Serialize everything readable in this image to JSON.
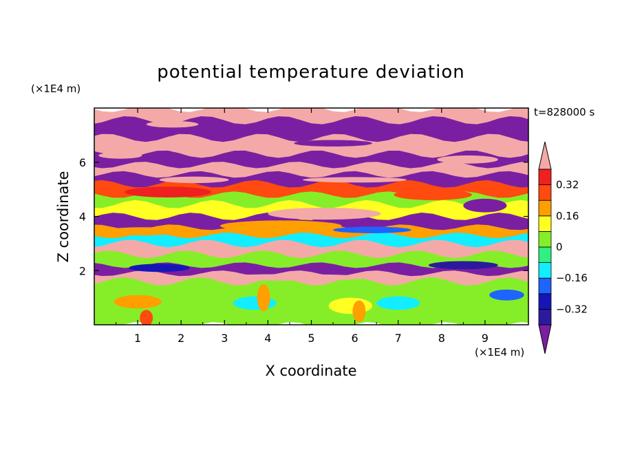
{
  "chart_data": {
    "type": "heatmap",
    "title": "potential temperature deviation",
    "xlabel": "X coordinate",
    "ylabel": "Z coordinate",
    "x_unit": "(×1E4 m)",
    "y_unit": "(×1E4 m)",
    "time_label": "t=828000 s",
    "xlim": [
      0,
      10
    ],
    "ylim": [
      0,
      8
    ],
    "x_ticks": [
      1,
      2,
      3,
      4,
      5,
      6,
      7,
      8,
      9
    ],
    "y_ticks": [
      2,
      4,
      6
    ],
    "contour_levels": [
      -0.4,
      -0.32,
      -0.24,
      -0.16,
      -0.08,
      0,
      0.08,
      0.16,
      0.24,
      0.32,
      0.4
    ],
    "colorbar_labels": [
      "0.32",
      "0.16",
      "0",
      "−0.16",
      "−0.32"
    ],
    "colorbar_label_values": [
      0.32,
      0.16,
      0,
      -0.16,
      -0.32
    ],
    "colors": {
      "below_min": "#7b1fa2",
      "levels": [
        "#2b1a9e",
        "#1616b8",
        "#1e64ff",
        "#12eeff",
        "#2ff080",
        "#86ee28",
        "#ffff22",
        "#ff9f00",
        "#ff4a10",
        "#ee2020"
      ],
      "above_max": "#f4a9a8"
    },
    "bands": [
      {
        "z_bottom": 7.55,
        "z_top": 8.0,
        "value": 0.5
      },
      {
        "z_bottom": 6.9,
        "z_top": 7.55,
        "value": -0.5
      },
      {
        "z_bottom": 6.3,
        "z_top": 6.9,
        "value": 0.5
      },
      {
        "z_bottom": 5.9,
        "z_top": 6.3,
        "value": -0.5
      },
      {
        "z_bottom": 5.55,
        "z_top": 5.9,
        "value": 0.45
      },
      {
        "z_bottom": 5.2,
        "z_top": 5.55,
        "value": -0.42
      },
      {
        "z_bottom": 4.8,
        "z_top": 5.2,
        "value": 0.3
      },
      {
        "z_bottom": 4.45,
        "z_top": 4.8,
        "value": 0.05
      },
      {
        "z_bottom": 4.0,
        "z_top": 4.45,
        "value": 0.12
      },
      {
        "z_bottom": 3.6,
        "z_top": 4.0,
        "value": -0.45
      },
      {
        "z_bottom": 3.3,
        "z_top": 3.6,
        "value": 0.2
      },
      {
        "z_bottom": 3.0,
        "z_top": 3.3,
        "value": -0.12
      },
      {
        "z_bottom": 2.6,
        "z_top": 3.0,
        "value": 0.5
      },
      {
        "z_bottom": 2.2,
        "z_top": 2.6,
        "value": 0.02
      },
      {
        "z_bottom": 1.9,
        "z_top": 2.2,
        "value": -0.42
      },
      {
        "z_bottom": 1.6,
        "z_top": 1.9,
        "value": 0.45
      },
      {
        "z_bottom": 1.0,
        "z_top": 1.6,
        "value": 0.02
      },
      {
        "z_bottom": 0.5,
        "z_top": 1.0,
        "value": 0.06
      },
      {
        "z_bottom": 0.0,
        "z_top": 0.5,
        "value": 0.0
      }
    ],
    "blobs": [
      {
        "x": 0.6,
        "z": 6.25,
        "rx": 0.5,
        "rz": 0.12,
        "value": 0.5
      },
      {
        "x": 1.8,
        "z": 7.4,
        "rx": 0.6,
        "rz": 0.12,
        "value": 0.5
      },
      {
        "x": 5.5,
        "z": 6.7,
        "rx": 0.9,
        "rz": 0.12,
        "value": -0.42
      },
      {
        "x": 8.6,
        "z": 6.1,
        "rx": 0.7,
        "rz": 0.15,
        "value": 0.45
      },
      {
        "x": 1.7,
        "z": 4.9,
        "rx": 1.0,
        "rz": 0.2,
        "value": 0.32
      },
      {
        "x": 5.3,
        "z": 4.1,
        "rx": 1.3,
        "rz": 0.22,
        "value": 0.45
      },
      {
        "x": 7.8,
        "z": 4.8,
        "rx": 0.9,
        "rz": 0.2,
        "value": 0.3
      },
      {
        "x": 9.0,
        "z": 4.4,
        "rx": 0.5,
        "rz": 0.25,
        "value": -0.45
      },
      {
        "x": 4.3,
        "z": 3.65,
        "rx": 1.4,
        "rz": 0.2,
        "value": 0.18
      },
      {
        "x": 1.1,
        "z": 3.45,
        "rx": 0.9,
        "rz": 0.15,
        "value": 0.2
      },
      {
        "x": 6.4,
        "z": 3.5,
        "rx": 0.9,
        "rz": 0.12,
        "value": -0.2
      },
      {
        "x": 1.5,
        "z": 2.1,
        "rx": 0.7,
        "rz": 0.15,
        "value": -0.3
      },
      {
        "x": 4.5,
        "z": 1.75,
        "rx": 1.8,
        "rz": 0.12,
        "value": 0.45
      },
      {
        "x": 8.5,
        "z": 2.2,
        "rx": 0.8,
        "rz": 0.15,
        "value": -0.4
      },
      {
        "x": 1.0,
        "z": 0.85,
        "rx": 0.55,
        "rz": 0.25,
        "value": 0.16
      },
      {
        "x": 2.6,
        "z": 0.75,
        "rx": 0.5,
        "rz": 0.3,
        "value": 0.02
      },
      {
        "x": 3.7,
        "z": 0.8,
        "rx": 0.5,
        "rz": 0.25,
        "value": -0.1
      },
      {
        "x": 5.9,
        "z": 0.7,
        "rx": 0.5,
        "rz": 0.3,
        "value": 0.1
      },
      {
        "x": 7.0,
        "z": 0.8,
        "rx": 0.5,
        "rz": 0.25,
        "value": -0.1
      },
      {
        "x": 8.4,
        "z": 0.7,
        "rx": 0.5,
        "rz": 0.3,
        "value": 0.02
      },
      {
        "x": 9.5,
        "z": 1.1,
        "rx": 0.4,
        "rz": 0.2,
        "value": -0.18
      },
      {
        "x": 1.2,
        "z": 0.25,
        "rx": 0.15,
        "rz": 0.3,
        "value": 0.3
      },
      {
        "x": 6.1,
        "z": 0.5,
        "rx": 0.15,
        "rz": 0.4,
        "value": 0.16
      },
      {
        "x": 3.9,
        "z": 1.0,
        "rx": 0.15,
        "rz": 0.5,
        "value": 0.16
      },
      {
        "x": 2.3,
        "z": 5.35,
        "rx": 0.8,
        "rz": 0.12,
        "value": 0.4
      },
      {
        "x": 6.0,
        "z": 5.35,
        "rx": 1.2,
        "rz": 0.1,
        "value": 0.45
      }
    ]
  }
}
